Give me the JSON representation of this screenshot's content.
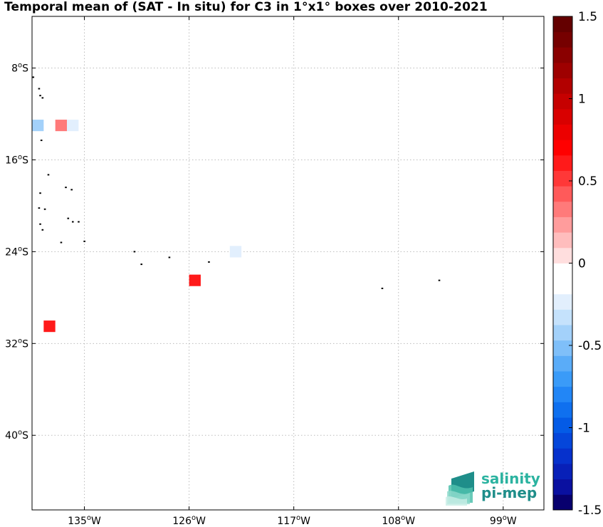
{
  "title": "Temporal mean of (SAT - In situ) for C3 in 1°x1° boxes over 2010-2021",
  "map": {
    "lat_range": [
      -46.5,
      -3.5
    ],
    "lon_range": [
      -139.5,
      -95.5
    ],
    "lat_ticks": [
      {
        "value": -8,
        "label": "8oS"
      },
      {
        "value": -16,
        "label": "16oS"
      },
      {
        "value": -24,
        "label": "24oS"
      },
      {
        "value": -32,
        "label": "32oS"
      },
      {
        "value": -40,
        "label": "40oS"
      }
    ],
    "lon_ticks": [
      {
        "value": -135,
        "label": "135oW"
      },
      {
        "value": -126,
        "label": "126oW"
      },
      {
        "value": -117,
        "label": "117oW"
      },
      {
        "value": -108,
        "label": "108oW"
      },
      {
        "value": -99,
        "label": "99oW"
      }
    ],
    "grid": true,
    "land_color": "#000000"
  },
  "chart_data": {
    "type": "heatmap",
    "title": "Temporal mean of (SAT - In situ) for C3 in 1°x1° boxes over 2010-2021",
    "cells": [
      {
        "lon": -139,
        "lat": -13,
        "value": -0.45
      },
      {
        "lon": -137,
        "lat": -13,
        "value": 0.3
      },
      {
        "lon": -136,
        "lat": -13,
        "value": -0.25
      },
      {
        "lon": -122,
        "lat": -24,
        "value": -0.25
      },
      {
        "lon": -125.5,
        "lat": -26.5,
        "value": 0.6
      },
      {
        "lon": -138,
        "lat": -30.5,
        "value": 0.6
      }
    ],
    "islands": [
      {
        "lon": -139.4,
        "lat": -8.8
      },
      {
        "lon": -138.9,
        "lat": -9.8
      },
      {
        "lon": -138.8,
        "lat": -10.4
      },
      {
        "lon": -138.6,
        "lat": -10.6
      },
      {
        "lon": -138.7,
        "lat": -14.3
      },
      {
        "lon": -138.1,
        "lat": -17.3
      },
      {
        "lon": -136.6,
        "lat": -18.4
      },
      {
        "lon": -136.1,
        "lat": -18.6
      },
      {
        "lon": -138.8,
        "lat": -18.9
      },
      {
        "lon": -138.9,
        "lat": -20.2
      },
      {
        "lon": -138.4,
        "lat": -20.3
      },
      {
        "lon": -136.4,
        "lat": -21.1
      },
      {
        "lon": -136.0,
        "lat": -21.4
      },
      {
        "lon": -135.5,
        "lat": -21.4
      },
      {
        "lon": -138.8,
        "lat": -21.6
      },
      {
        "lon": -138.6,
        "lat": -22.1
      },
      {
        "lon": -137.0,
        "lat": -23.2
      },
      {
        "lon": -135.0,
        "lat": -23.1
      },
      {
        "lon": -130.7,
        "lat": -24.0
      },
      {
        "lon": -130.1,
        "lat": -25.1
      },
      {
        "lon": -127.7,
        "lat": -24.5
      },
      {
        "lon": -124.3,
        "lat": -24.9
      },
      {
        "lon": -109.4,
        "lat": -27.2
      },
      {
        "lon": -104.5,
        "lat": -26.5
      }
    ],
    "colorbar": {
      "vmin": -1.5,
      "vmax": 1.5,
      "ticks": [
        {
          "value": 1.5,
          "label": "1.5"
        },
        {
          "value": 1,
          "label": "1"
        },
        {
          "value": 0.5,
          "label": "0.5"
        },
        {
          "value": 0,
          "label": "0"
        },
        {
          "value": -0.5,
          "label": "-0.5"
        },
        {
          "value": -1,
          "label": "-1"
        },
        {
          "value": -1.5,
          "label": "-1.5"
        }
      ],
      "colors": [
        "#08006e",
        "#0a10a0",
        "#0820b8",
        "#0631cc",
        "#0546da",
        "#045be6",
        "#0f70ef",
        "#2286f6",
        "#3a9bf8",
        "#5aacf8",
        "#7fbff9",
        "#a3d1fa",
        "#c5e2fc",
        "#e2effd",
        "#ffffff",
        "#ffffff",
        "#ffdede",
        "#ffbdbd",
        "#ff9c9c",
        "#ff7a7a",
        "#ff5a5a",
        "#ff3838",
        "#ff1a1a",
        "#ff0000",
        "#ec0000",
        "#d90000",
        "#c60000",
        "#b20000",
        "#9e0000",
        "#8a0000",
        "#760000",
        "#640000"
      ]
    }
  },
  "logo": {
    "word1": "salinity",
    "word2": "pi-mep"
  }
}
